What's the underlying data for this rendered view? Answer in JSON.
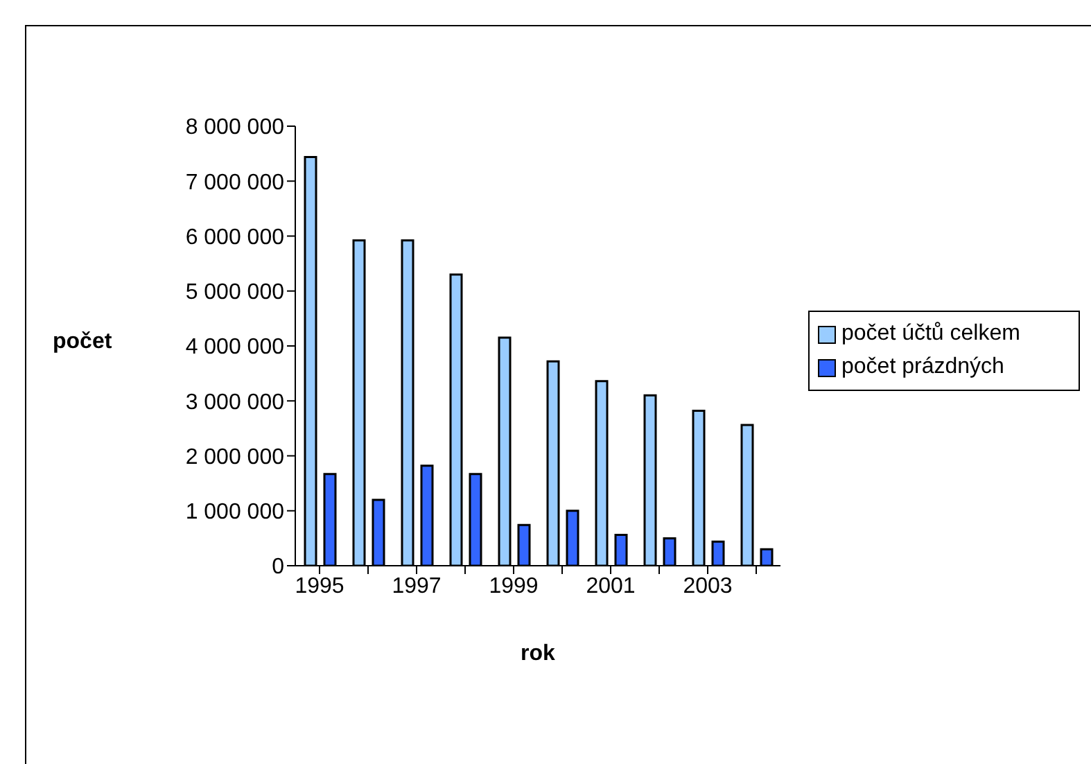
{
  "chart_data": {
    "type": "bar",
    "xlabel": "rok",
    "ylabel": "počet",
    "categories": [
      "1995",
      null,
      "1997",
      null,
      "1999",
      null,
      "2001",
      null,
      "2003",
      null
    ],
    "series": [
      {
        "name": "počet účtů celkem",
        "color": "#99ccff",
        "values": [
          7440000,
          5920000,
          5920000,
          5300000,
          4150000,
          3720000,
          3360000,
          3100000,
          2820000,
          2560000
        ]
      },
      {
        "name": "počet prázdných",
        "color": "#3366ff",
        "values": [
          1670000,
          1200000,
          1820000,
          1670000,
          740000,
          1000000,
          560000,
          500000,
          440000,
          300000
        ]
      }
    ],
    "ylim": [
      0,
      8000000
    ],
    "yticks": [
      {
        "value": 0,
        "label": "0"
      },
      {
        "value": 1000000,
        "label": "1 000 000"
      },
      {
        "value": 2000000,
        "label": "2 000 000"
      },
      {
        "value": 3000000,
        "label": "3 000 000"
      },
      {
        "value": 4000000,
        "label": "4 000 000"
      },
      {
        "value": 5000000,
        "label": "5 000 000"
      },
      {
        "value": 6000000,
        "label": "6 000 000"
      },
      {
        "value": 7000000,
        "label": "7 000 000"
      },
      {
        "value": 8000000,
        "label": "8 000 000"
      }
    ],
    "grid": false,
    "legend": "right"
  }
}
